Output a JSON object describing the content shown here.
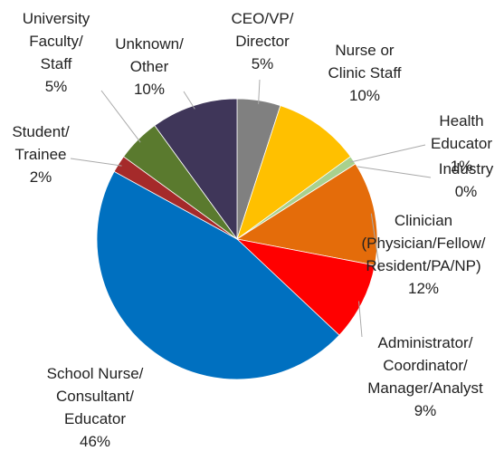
{
  "chart_data": {
    "type": "pie",
    "categories": [
      "CEO/VP/\nDirector",
      "Nurse or\nClinic Staff",
      "Health\nEducator",
      "Industry",
      "Clinician\n(Physician/Fellow/\nResident/PA/NP)",
      "Administrator/\nCoordinator/\nManager/Analyst",
      "School Nurse/\nConsultant/\nEducator",
      "Student/\nTrainee",
      "University\nFaculty/\nStaff",
      "Unknown/\nOther"
    ],
    "values": [
      5,
      10,
      1,
      0,
      12,
      9,
      46,
      2,
      5,
      10
    ],
    "value_labels": [
      "5%",
      "10%",
      "1%",
      "0%",
      "12%",
      "9%",
      "46%",
      "2%",
      "5%",
      "10%"
    ],
    "colors": [
      "#808080",
      "#ffc000",
      "#a9d18e",
      "#c5e0b4",
      "#e46c0a",
      "#ff0000",
      "#0070c0",
      "#a52a2a",
      "#5a7a2e",
      "#3f3659"
    ]
  }
}
